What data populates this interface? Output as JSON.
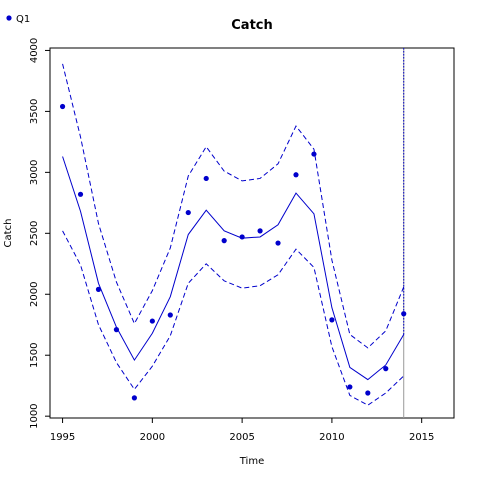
{
  "chart_data": {
    "type": "line",
    "title": "Catch",
    "xlabel": "Time",
    "ylabel": "Catch",
    "xlim": [
      1994.3,
      2016.8
    ],
    "ylim": [
      985,
      4020
    ],
    "xticks": [
      "1995",
      "2000",
      "2005",
      "2010",
      "2015"
    ],
    "yticks": [
      "1000",
      "1500",
      "2000",
      "2500",
      "3000",
      "3500",
      "4000"
    ],
    "grid": false,
    "legend_position": "top-left",
    "colors": {
      "series": "#0000cc",
      "vline": "#999999"
    },
    "vline_x": 2014,
    "x": [
      1995,
      1996,
      1997,
      1998,
      1999,
      2000,
      2001,
      2002,
      2003,
      2004,
      2005,
      2006,
      2007,
      2008,
      2009,
      2010,
      2011,
      2012,
      2013,
      2014
    ],
    "series": [
      {
        "name": "Q1",
        "style": "points",
        "values": [
          3540,
          2820,
          2040,
          1710,
          1150,
          1780,
          1830,
          2670,
          2950,
          2440,
          2470,
          2520,
          2420,
          2980,
          3150,
          1790,
          1240,
          1190,
          1390,
          1840
        ]
      },
      {
        "style": "line",
        "values": [
          3130,
          2680,
          2090,
          1730,
          1460,
          1680,
          1980,
          2490,
          2690,
          2520,
          2460,
          2470,
          2570,
          2830,
          2660,
          1890,
          1400,
          1300,
          1420,
          1670
        ]
      },
      {
        "style": "dashed",
        "values": [
          3890,
          3290,
          2580,
          2100,
          1760,
          2030,
          2380,
          2970,
          3210,
          3010,
          2930,
          2950,
          3070,
          3380,
          3190,
          2280,
          1670,
          1560,
          1700,
          2060
        ]
      },
      {
        "style": "dashed",
        "values": [
          2520,
          2240,
          1750,
          1440,
          1220,
          1410,
          1660,
          2090,
          2250,
          2110,
          2050,
          2070,
          2160,
          2370,
          2220,
          1570,
          1170,
          1090,
          1190,
          1330
        ]
      }
    ]
  }
}
